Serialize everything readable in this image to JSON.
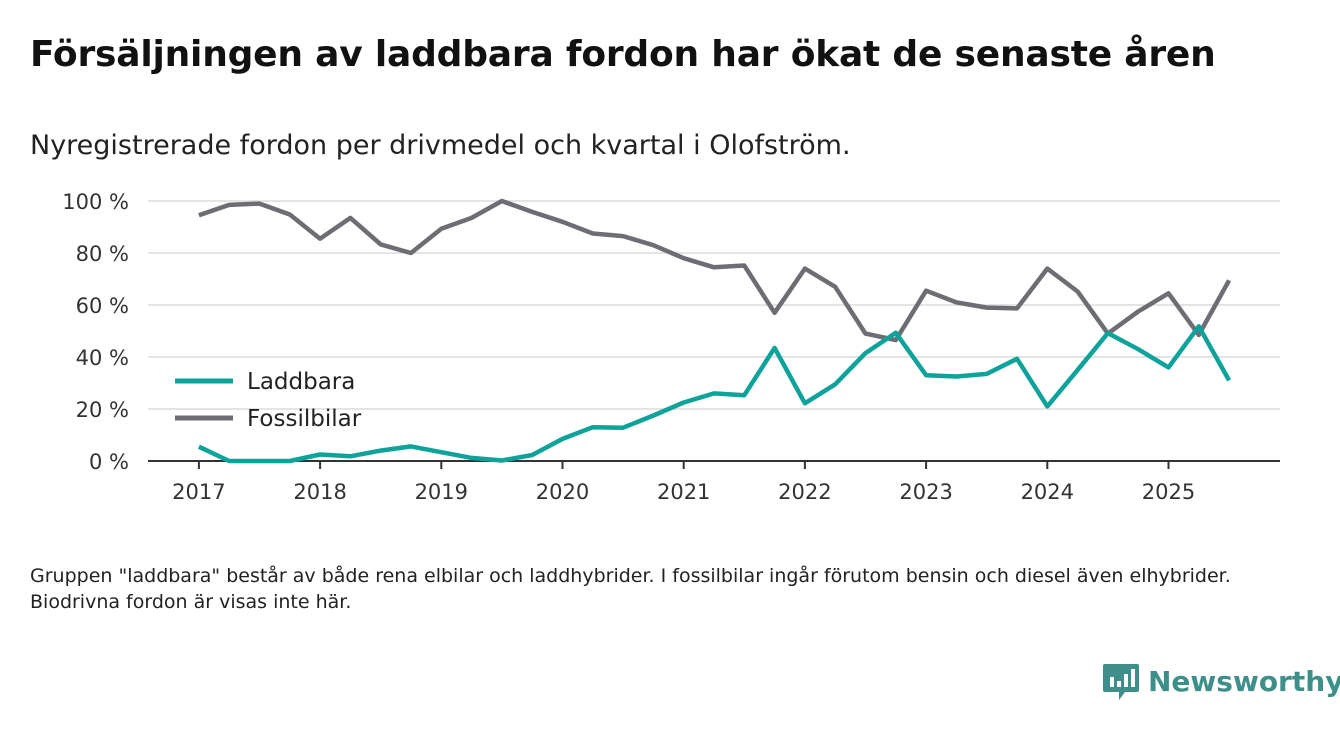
{
  "title": "Försäljningen av laddbara fordon har ökat de senaste åren",
  "subtitle": "Nyregistrerade fordon per drivmedel och kvartal i Olofström.",
  "footnote": "Gruppen \"laddbara\" består av både rena elbilar och laddhybrider. I fossilbilar ingår förutom bensin och diesel även elhybrider. Biodrivna fordon är visas inte här.",
  "brand": {
    "name": "Newsworthy",
    "icon": "newsworthy-logo-icon",
    "color": "#3e8f8a"
  },
  "chart_data": {
    "type": "line",
    "x_unit": "year (quarterly)",
    "xlim": [
      2016.58,
      2025.92
    ],
    "ylim": [
      0,
      100
    ],
    "y_ticks": [
      0,
      20,
      40,
      60,
      80,
      100
    ],
    "y_tick_labels": [
      "0 %",
      "20 %",
      "40 %",
      "60 %",
      "80 %",
      "100 %"
    ],
    "x_ticks": [
      2017,
      2018,
      2019,
      2020,
      2021,
      2022,
      2023,
      2024,
      2025
    ],
    "x_tick_labels": [
      "2017",
      "2018",
      "2019",
      "2020",
      "2021",
      "2022",
      "2023",
      "2024",
      "2025"
    ],
    "grid": true,
    "legend_position": "left",
    "x": [
      2017.0,
      2017.25,
      2017.5,
      2017.75,
      2018.0,
      2018.25,
      2018.5,
      2018.75,
      2019.0,
      2019.25,
      2019.5,
      2019.75,
      2020.0,
      2020.25,
      2020.5,
      2020.75,
      2021.0,
      2021.25,
      2021.5,
      2021.75,
      2022.0,
      2022.25,
      2022.5,
      2022.75,
      2023.0,
      2023.25,
      2023.5,
      2023.75,
      2024.0,
      2024.25,
      2024.5,
      2024.75,
      2025.0,
      2025.25,
      2025.5
    ],
    "series": [
      {
        "name": "Laddbara",
        "color": "#0ea39a",
        "values": [
          5.5,
          0,
          0,
          0,
          2.5,
          1.8,
          4,
          5.6,
          3.4,
          1.2,
          0.2,
          2.3,
          8.5,
          13,
          12.8,
          17.5,
          22.5,
          26,
          25.3,
          43.5,
          22.2,
          29.5,
          41.5,
          49.3,
          33,
          32.5,
          33.5,
          39.3,
          21,
          35,
          49.2,
          43,
          36,
          51.8,
          31
        ]
      },
      {
        "name": "Fossilbilar",
        "color": "#6e6d73",
        "values": [
          94.5,
          98.5,
          99,
          94.8,
          85.5,
          93.5,
          83.3,
          80,
          89.3,
          93.5,
          100,
          95.8,
          92,
          87.5,
          86.5,
          83,
          78,
          74.5,
          75.2,
          57,
          74,
          67,
          49,
          46.5,
          65.5,
          61,
          59,
          58.7,
          74,
          65.2,
          49,
          57.5,
          64.5,
          48.5,
          69.5
        ]
      }
    ]
  }
}
